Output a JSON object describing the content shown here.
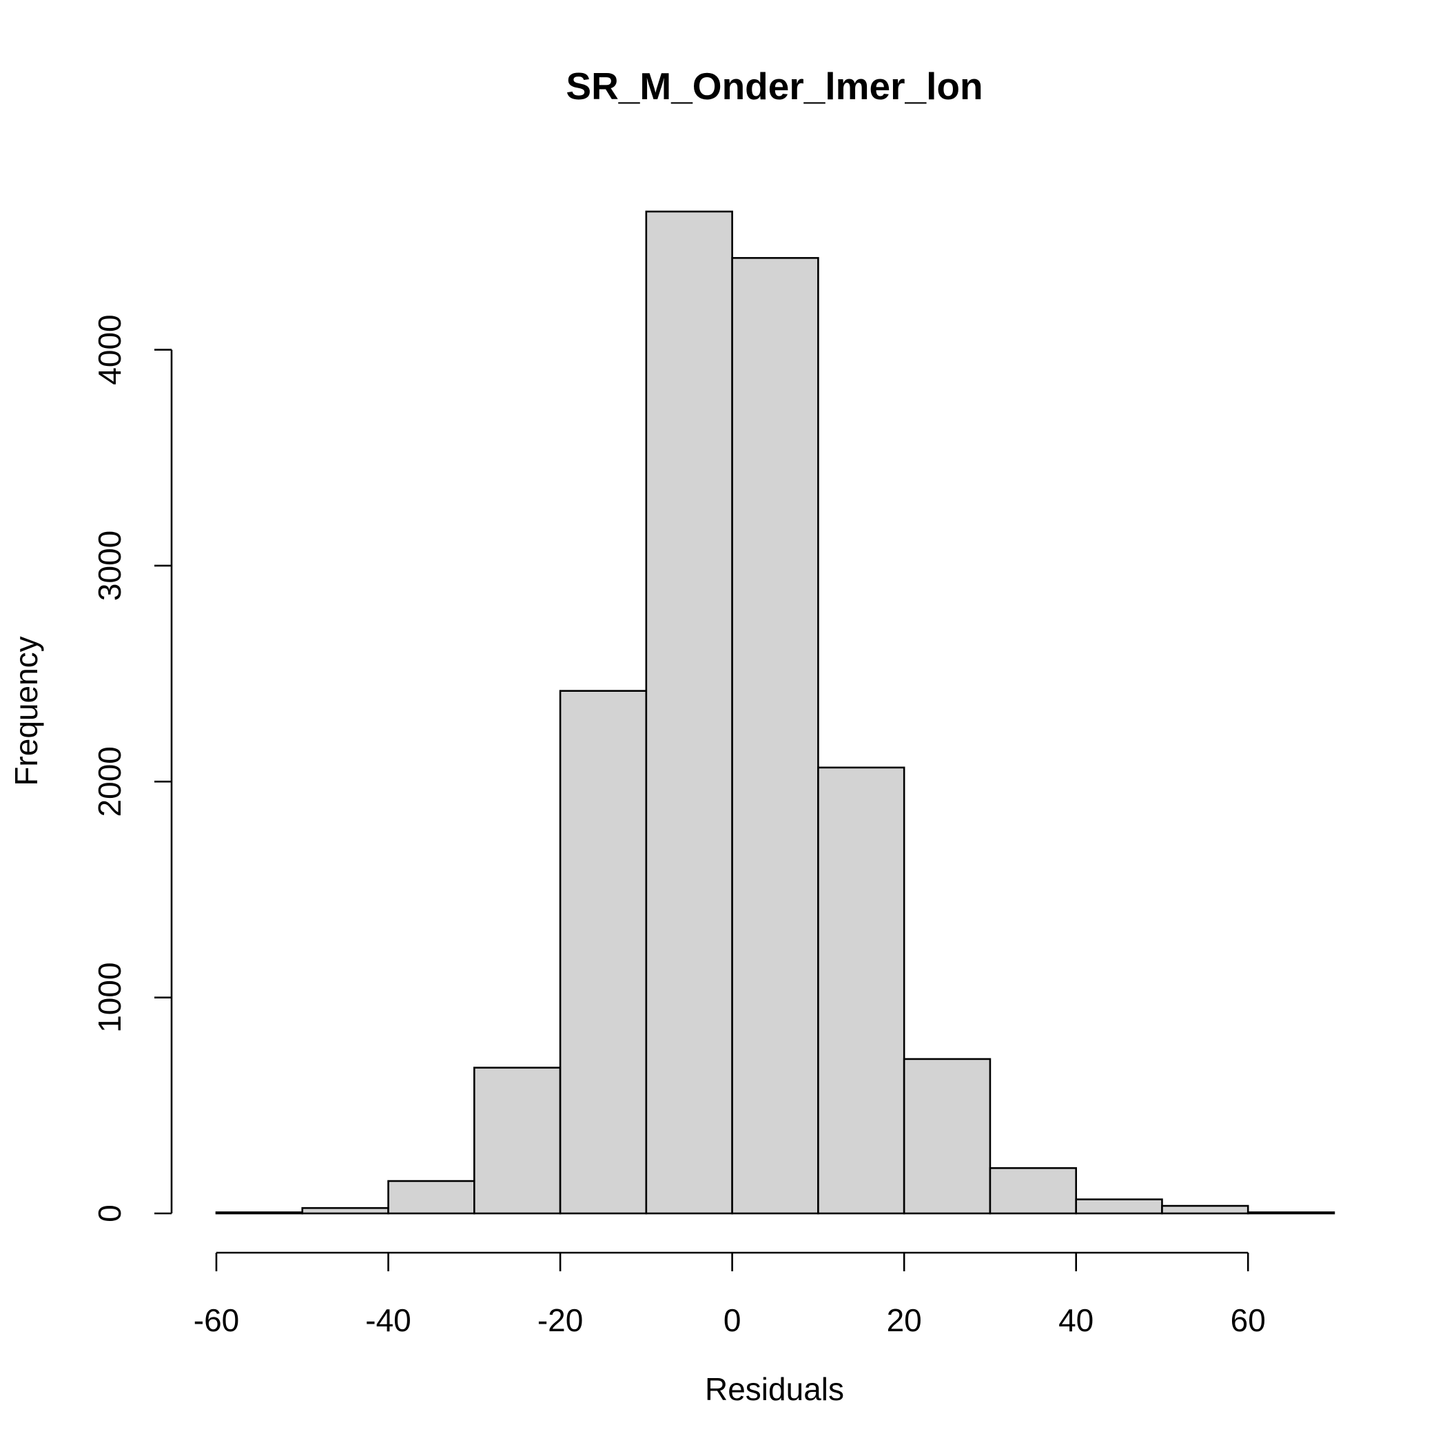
{
  "chart_data": {
    "type": "bar",
    "title": "SR_M_Onder_lmer_lon",
    "xlabel": "Residuals",
    "ylabel": "Frequency",
    "bin_edges": [
      -60,
      -50,
      -40,
      -30,
      -20,
      -10,
      0,
      10,
      20,
      30,
      40,
      50,
      60,
      70
    ],
    "values": [
      5,
      25,
      150,
      675,
      2420,
      4640,
      4425,
      2065,
      715,
      210,
      65,
      35,
      5
    ],
    "xlim": [
      -60,
      70
    ],
    "ylim": [
      0,
      4640
    ],
    "x_ticks": [
      -60,
      -40,
      -20,
      0,
      20,
      40,
      60
    ],
    "x_tick_labels": [
      "-60",
      "-40",
      "-20",
      "0",
      "20",
      "40",
      "60"
    ],
    "y_ticks": [
      0,
      1000,
      2000,
      3000,
      4000
    ],
    "y_tick_labels": [
      "0",
      "1000",
      "2000",
      "3000",
      "4000"
    ],
    "bar_fill": "#d3d3d3",
    "grid": false,
    "legend": "none"
  }
}
